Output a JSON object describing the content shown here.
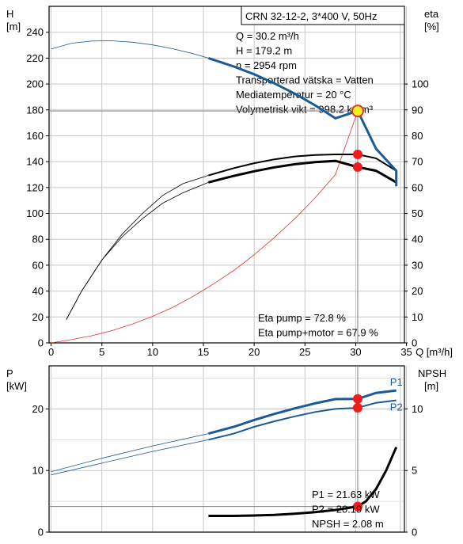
{
  "chart_data": [
    {
      "type": "line",
      "title": "CRN 32-12-2, 3*400 V, 50Hz",
      "left_axis": {
        "label": "H",
        "unit": "[m]",
        "ticks": [
          0,
          20,
          40,
          60,
          80,
          100,
          120,
          140,
          160,
          180,
          200,
          220,
          240
        ],
        "ylim": [
          0,
          260
        ]
      },
      "right_axis": {
        "label": "eta",
        "unit": "[%]",
        "ticks": [
          0,
          10,
          20,
          30,
          40,
          50,
          60,
          70,
          80,
          90,
          100
        ],
        "ylim": [
          0,
          130
        ]
      },
      "x_axis": {
        "label": "Q [m³/h]",
        "ticks": [
          0,
          5,
          10,
          15,
          20,
          25,
          30,
          35
        ],
        "xlim": [
          -0.2,
          34.8
        ]
      },
      "grid": true,
      "series": [
        {
          "axis": "left",
          "color": "#1a5a96",
          "x_thin": [
            0,
            2,
            4,
            6,
            8,
            10,
            12,
            14,
            15.5
          ],
          "y_thin": [
            227,
            231.5,
            233.2,
            233.4,
            232.3,
            230.2,
            227.2,
            223.4,
            220
          ],
          "x_thick": [
            15.5,
            18,
            20,
            22,
            24,
            26,
            28,
            30.2,
            32,
            34,
            34
          ],
          "y_thick": [
            220,
            213.5,
            207.5,
            200.5,
            192.5,
            183.5,
            173.5,
            179.2,
            150,
            133,
            121
          ]
        },
        {
          "axis": "right",
          "color": "#000000",
          "x_thin": [
            1.5,
            3,
            5,
            7,
            9,
            11,
            13,
            15.5
          ],
          "y_thin": [
            9,
            20,
            32,
            41,
            48,
            54,
            58,
            62
          ],
          "x_thick": [
            15.5,
            18,
            20,
            22,
            24,
            26,
            28,
            30.2,
            32,
            34
          ],
          "y_thick": [
            62,
            64.5,
            66.3,
            67.8,
            69,
            69.8,
            70.3,
            67.9,
            66.5,
            62
          ]
        },
        {
          "axis": "right",
          "color": "#000000",
          "x_thin": [
            1.5,
            3,
            5,
            7,
            9,
            11,
            13,
            15.5
          ],
          "y_thin": [
            9,
            20,
            32,
            42,
            50,
            57,
            61.5,
            64.7
          ],
          "x_thick": [
            15.5,
            18,
            20,
            22,
            24,
            26,
            28,
            30.2,
            32,
            34
          ],
          "y_thick": [
            64.7,
            67.5,
            69.4,
            70.9,
            72,
            72.6,
            72.8,
            72.8,
            71.3,
            66.5
          ]
        },
        {
          "axis": "left",
          "color": "#e0342c",
          "x": [
            0,
            2,
            4,
            6,
            8,
            10,
            12,
            14,
            16,
            18,
            20,
            22,
            24,
            26,
            28,
            30.2
          ],
          "y": [
            0,
            2.5,
            5.5,
            9.5,
            14.5,
            20.5,
            27.5,
            36,
            45.5,
            56,
            68,
            81.5,
            96,
            112,
            130,
            179.2
          ]
        }
      ],
      "operating_point": {
        "q": 30.2,
        "h": 179.2,
        "eta_pump": 72.8,
        "eta_total": 67.9
      },
      "info": [
        "Q = 30.2 m³/h",
        "H = 179.2 m",
        "n = 2954 rpm",
        "Transporterad vätska = Vatten",
        "Mediatemperatur = 20 °C",
        "Volymetrisk vikt = 998.2 kg/m³"
      ],
      "eta_info": [
        "Eta pump = 72.8 %",
        "Eta pump+motor = 67.9 %"
      ]
    },
    {
      "type": "line",
      "left_axis": {
        "label": "P",
        "unit": "[kW]",
        "ticks": [
          0,
          10,
          20
        ],
        "ylim": [
          0,
          27
        ]
      },
      "right_axis": {
        "label": "NPSH",
        "unit": "[m]",
        "ticks": [
          0,
          5,
          10
        ],
        "ylim": [
          0,
          13.5
        ]
      },
      "x_axis": {
        "xlim": [
          -0.2,
          34.8
        ]
      },
      "grid": true,
      "series": [
        {
          "name": "P1",
          "axis": "left",
          "color": "#1a5a96",
          "x_thin": [
            0,
            5,
            10,
            15.5
          ],
          "y_thin": [
            9.8,
            12.0,
            14.0,
            16.0
          ],
          "x_thick": [
            15.5,
            18,
            20,
            22,
            24,
            26,
            28,
            30.2,
            32,
            34
          ],
          "y_thick": [
            16.0,
            17.1,
            18.2,
            19.2,
            20.1,
            20.9,
            21.6,
            21.63,
            22.6,
            23.0
          ]
        },
        {
          "name": "P2",
          "axis": "left",
          "color": "#1a5a96",
          "x_thin": [
            0,
            5,
            10,
            15.5
          ],
          "y_thin": [
            9.3,
            11.2,
            13.1,
            15.0
          ],
          "x_thick": [
            15.5,
            18,
            20,
            22,
            24,
            26,
            28,
            30.2,
            32,
            34
          ],
          "y_thick": [
            15.0,
            16.0,
            17.1,
            18.0,
            18.8,
            19.5,
            20.0,
            20.19,
            21.0,
            21.4
          ]
        },
        {
          "name": "NPSH",
          "axis": "right",
          "color": "#000000",
          "x_thick": [
            15.5,
            18,
            20,
            22,
            24,
            26,
            28,
            30.2,
            31,
            32,
            33,
            34
          ],
          "y_thick": [
            1.32,
            1.32,
            1.35,
            1.4,
            1.5,
            1.62,
            1.8,
            2.08,
            2.5,
            3.5,
            5.0,
            6.9
          ]
        }
      ],
      "operating_point": {
        "p1": 21.63,
        "p2": 20.19,
        "npsh": 2.08
      },
      "info": [
        "P1 = 21.63 kW",
        "P2 = 20.19 kW",
        "NPSH = 2.08 m"
      ]
    }
  ]
}
